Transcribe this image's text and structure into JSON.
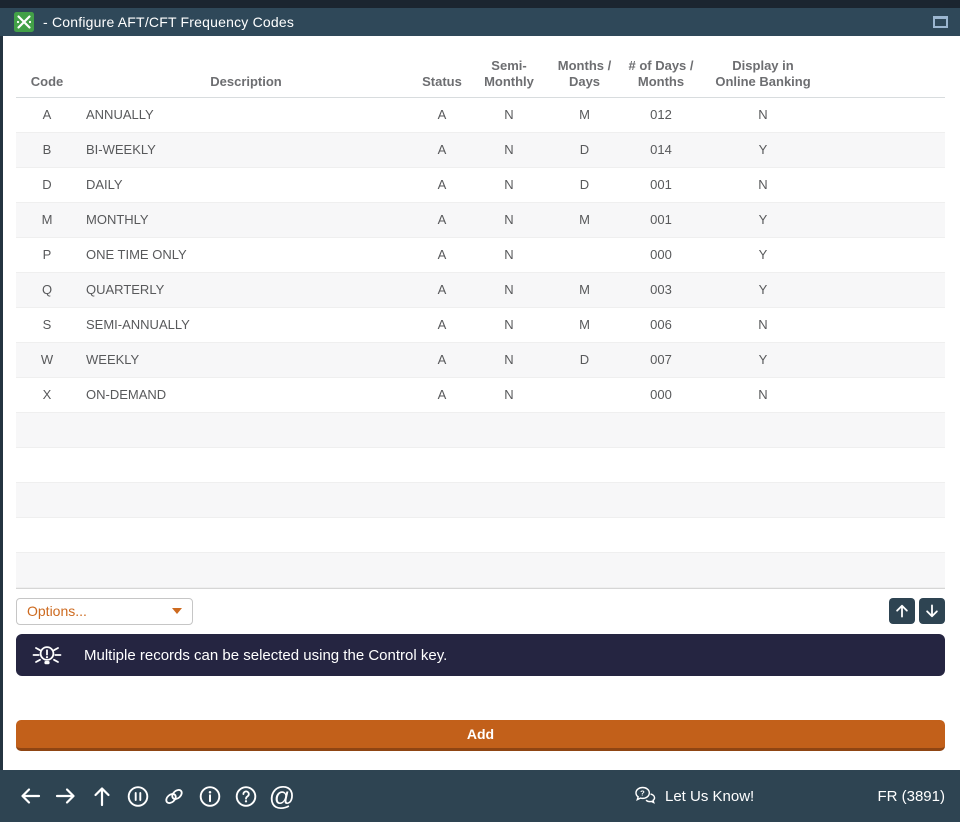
{
  "window": {
    "title": "- Configure AFT/CFT Frequency Codes",
    "app_icon": "green-app-icon",
    "maximize_icon": "maximize-window"
  },
  "table": {
    "columns": [
      "Code",
      "Description",
      "Status",
      "Semi-\nMonthly",
      "Months /\nDays",
      "# of Days /\nMonths",
      "Display in\nOnline Banking"
    ],
    "rows": [
      {
        "code": "A",
        "description": "ANNUALLY",
        "status": "A",
        "semi_monthly": "N",
        "months_days": "M",
        "num_days_months": "012",
        "display_online": "N"
      },
      {
        "code": "B",
        "description": "BI-WEEKLY",
        "status": "A",
        "semi_monthly": "N",
        "months_days": "D",
        "num_days_months": "014",
        "display_online": "Y"
      },
      {
        "code": "D",
        "description": "DAILY",
        "status": "A",
        "semi_monthly": "N",
        "months_days": "D",
        "num_days_months": "001",
        "display_online": "N"
      },
      {
        "code": "M",
        "description": "MONTHLY",
        "status": "A",
        "semi_monthly": "N",
        "months_days": "M",
        "num_days_months": "001",
        "display_online": "Y"
      },
      {
        "code": "P",
        "description": "ONE TIME ONLY",
        "status": "A",
        "semi_monthly": "N",
        "months_days": "",
        "num_days_months": "000",
        "display_online": "Y"
      },
      {
        "code": "Q",
        "description": "QUARTERLY",
        "status": "A",
        "semi_monthly": "N",
        "months_days": "M",
        "num_days_months": "003",
        "display_online": "Y"
      },
      {
        "code": "S",
        "description": "SEMI-ANNUALLY",
        "status": "A",
        "semi_monthly": "N",
        "months_days": "M",
        "num_days_months": "006",
        "display_online": "N"
      },
      {
        "code": "W",
        "description": "WEEKLY",
        "status": "A",
        "semi_monthly": "N",
        "months_days": "D",
        "num_days_months": "007",
        "display_online": "Y"
      },
      {
        "code": "X",
        "description": "ON-DEMAND",
        "status": "A",
        "semi_monthly": "N",
        "months_days": "",
        "num_days_months": "000",
        "display_online": "N"
      }
    ],
    "empty_rows": 5
  },
  "options": {
    "label": "Options..."
  },
  "tip": {
    "icon": "lightbulb",
    "message": "Multiple records can be selected using the Control key."
  },
  "actions": {
    "add_label": "Add"
  },
  "footer": {
    "nav_icons": [
      "arrow-left",
      "arrow-right",
      "arrow-up",
      "pause-circle",
      "link",
      "info-circle",
      "help-circle",
      "at-sign"
    ],
    "feedback_label": "Let Us Know!",
    "version_label": "FR (3891)"
  },
  "colors": {
    "titlebar": "#2f4859",
    "toolbar": "#2e4452",
    "tip_banner": "#252541",
    "accent_orange": "#c2601a",
    "app_icon_green": "#42a047",
    "row_alt": "#f7f7f8"
  }
}
